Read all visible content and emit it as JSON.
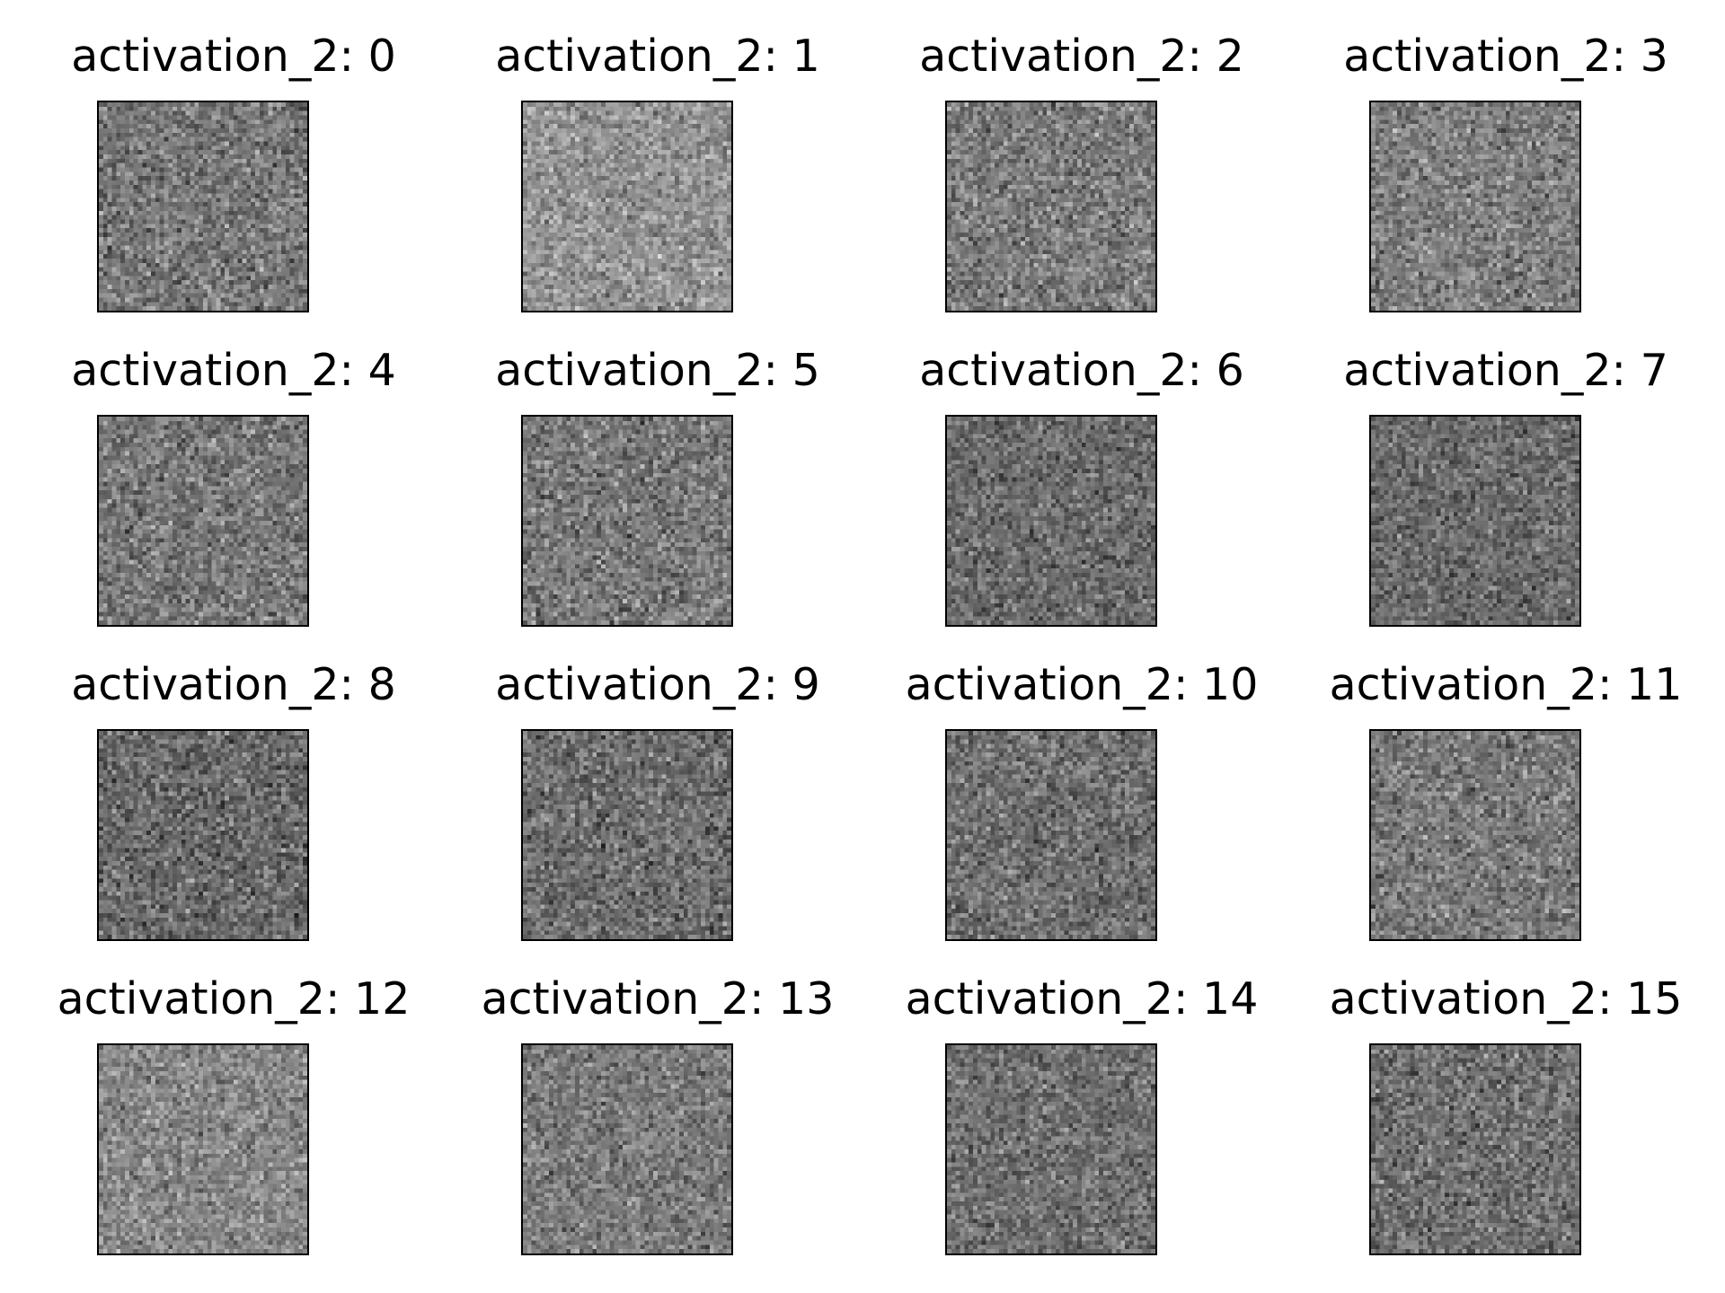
{
  "chart_data": [
    {
      "type": "heatmap",
      "title": "activation_2: 0",
      "colormap": "gray",
      "grid": false,
      "axes_visible": false,
      "mean_intensity": 0.47,
      "noise_spread": 0.2
    },
    {
      "type": "heatmap",
      "title": "activation_2: 1",
      "colormap": "gray",
      "grid": false,
      "axes_visible": false,
      "mean_intensity": 0.58,
      "noise_spread": 0.18
    },
    {
      "type": "heatmap",
      "title": "activation_2: 2",
      "colormap": "gray",
      "grid": false,
      "axes_visible": false,
      "mean_intensity": 0.49,
      "noise_spread": 0.2
    },
    {
      "type": "heatmap",
      "title": "activation_2: 3",
      "colormap": "gray",
      "grid": false,
      "axes_visible": false,
      "mean_intensity": 0.5,
      "noise_spread": 0.2
    },
    {
      "type": "heatmap",
      "title": "activation_2: 4",
      "colormap": "gray",
      "grid": false,
      "axes_visible": false,
      "mean_intensity": 0.47,
      "noise_spread": 0.2
    },
    {
      "type": "heatmap",
      "title": "activation_2: 5",
      "colormap": "gray",
      "grid": false,
      "axes_visible": false,
      "mean_intensity": 0.47,
      "noise_spread": 0.2
    },
    {
      "type": "heatmap",
      "title": "activation_2: 6",
      "colormap": "gray",
      "grid": false,
      "axes_visible": false,
      "mean_intensity": 0.42,
      "noise_spread": 0.18
    },
    {
      "type": "heatmap",
      "title": "activation_2: 7",
      "colormap": "gray",
      "grid": false,
      "axes_visible": false,
      "mean_intensity": 0.42,
      "noise_spread": 0.18
    },
    {
      "type": "heatmap",
      "title": "activation_2: 8",
      "colormap": "gray",
      "grid": false,
      "axes_visible": false,
      "mean_intensity": 0.42,
      "noise_spread": 0.2
    },
    {
      "type": "heatmap",
      "title": "activation_2: 9",
      "colormap": "gray",
      "grid": false,
      "axes_visible": false,
      "mean_intensity": 0.43,
      "noise_spread": 0.2
    },
    {
      "type": "heatmap",
      "title": "activation_2: 10",
      "colormap": "gray",
      "grid": false,
      "axes_visible": false,
      "mean_intensity": 0.44,
      "noise_spread": 0.19
    },
    {
      "type": "heatmap",
      "title": "activation_2: 11",
      "colormap": "gray",
      "grid": false,
      "axes_visible": false,
      "mean_intensity": 0.48,
      "noise_spread": 0.19
    },
    {
      "type": "heatmap",
      "title": "activation_2: 12",
      "colormap": "gray",
      "grid": false,
      "axes_visible": false,
      "mean_intensity": 0.53,
      "noise_spread": 0.18
    },
    {
      "type": "heatmap",
      "title": "activation_2: 13",
      "colormap": "gray",
      "grid": false,
      "axes_visible": false,
      "mean_intensity": 0.48,
      "noise_spread": 0.18
    },
    {
      "type": "heatmap",
      "title": "activation_2: 14",
      "colormap": "gray",
      "grid": false,
      "axes_visible": false,
      "mean_intensity": 0.44,
      "noise_spread": 0.18
    },
    {
      "type": "heatmap",
      "title": "activation_2: 15",
      "colormap": "gray",
      "grid": false,
      "axes_visible": false,
      "mean_intensity": 0.44,
      "noise_spread": 0.2
    }
  ]
}
